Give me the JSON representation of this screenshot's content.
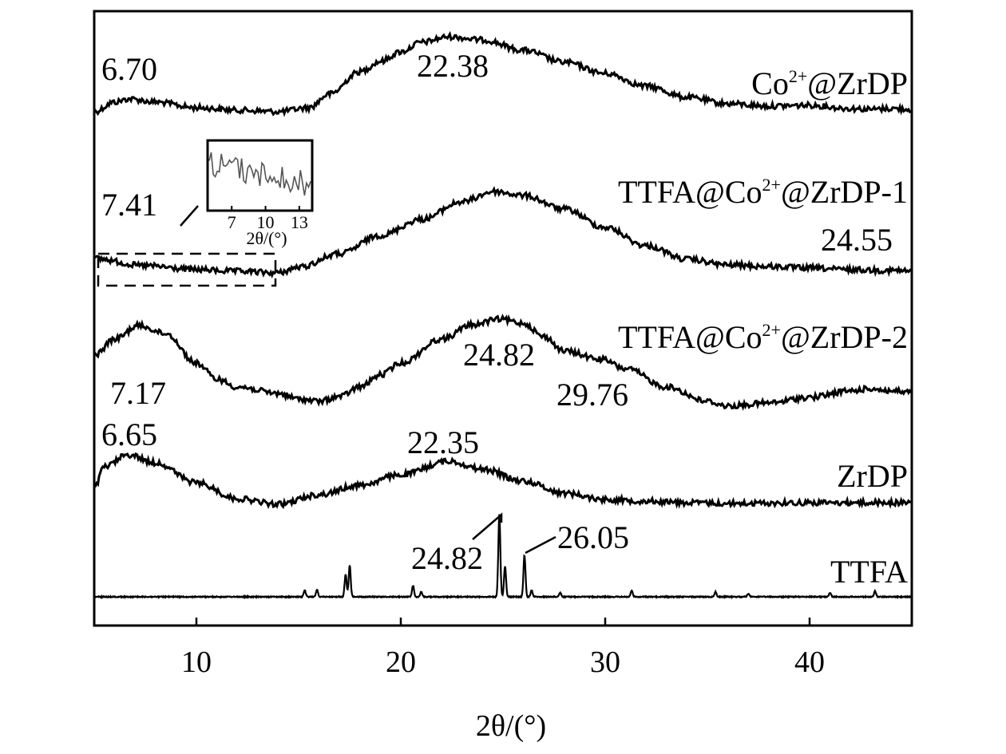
{
  "chart_data": {
    "type": "line",
    "xlabel": "2θ/(°)",
    "ylabel": "",
    "xlim": [
      5,
      45
    ],
    "x_ticks": [
      10,
      20,
      30,
      40
    ],
    "grid": false,
    "series": [
      {
        "name": "Co²⁺@ZrDP",
        "label_parts": [
          "Co",
          "2+",
          "@ZrDP"
        ],
        "baseline": 140,
        "points": [
          [
            5,
            140
          ],
          [
            6,
            128
          ],
          [
            6.7,
            124
          ],
          [
            8,
            128
          ],
          [
            10,
            135
          ],
          [
            12,
            138
          ],
          [
            14,
            140
          ],
          [
            15.5,
            135
          ],
          [
            16.5,
            118
          ],
          [
            18,
            90
          ],
          [
            19,
            77
          ],
          [
            20,
            65
          ],
          [
            21,
            53
          ],
          [
            22.38,
            46
          ],
          [
            24,
            50
          ],
          [
            26,
            63
          ],
          [
            28,
            78
          ],
          [
            30,
            92
          ],
          [
            32,
            108
          ],
          [
            34,
            122
          ],
          [
            36,
            130
          ],
          [
            38,
            133
          ],
          [
            40,
            132
          ],
          [
            42,
            136
          ],
          [
            43,
            137
          ],
          [
            44,
            136
          ],
          [
            45,
            137
          ]
        ],
        "peaks": [
          {
            "x": 6.7,
            "label": "6.70"
          },
          {
            "x": 22.38,
            "label": "22.38"
          }
        ]
      },
      {
        "name": "TTFA@Co²⁺@ZrDP-1",
        "label_parts": [
          "TTFA@Co",
          "2+",
          "@ZrDP-1"
        ],
        "baseline": 342,
        "points": [
          [
            5,
            324
          ],
          [
            7.4,
            333
          ],
          [
            10,
            338
          ],
          [
            12,
            340
          ],
          [
            14,
            342
          ],
          [
            15,
            335
          ],
          [
            17,
            318
          ],
          [
            19,
            295
          ],
          [
            21,
            275
          ],
          [
            23,
            253
          ],
          [
            24.55,
            240
          ],
          [
            26,
            245
          ],
          [
            28,
            262
          ],
          [
            30,
            285
          ],
          [
            32,
            308
          ],
          [
            34,
            325
          ],
          [
            36,
            332
          ],
          [
            38,
            334
          ],
          [
            40,
            336
          ],
          [
            42,
            338
          ],
          [
            44,
            339
          ],
          [
            45,
            340
          ]
        ],
        "peaks": [
          {
            "x": 7.41,
            "label": "7.41"
          },
          {
            "x": 24.55,
            "label": "24.55"
          }
        ],
        "inset": {
          "x_ticks": [
            7,
            10,
            13
          ],
          "xlabel": "2θ/(°)",
          "x_range": [
            5,
            14
          ]
        }
      },
      {
        "name": "TTFA@Co²⁺@ZrDP-2",
        "label_parts": [
          "TTFA@Co",
          "2+",
          "@ZrDP-2"
        ],
        "baseline": 500,
        "points": [
          [
            5,
            445
          ],
          [
            6,
            425
          ],
          [
            7.17,
            408
          ],
          [
            8.5,
            418
          ],
          [
            10,
            455
          ],
          [
            11,
            475
          ],
          [
            12,
            485
          ],
          [
            14,
            493
          ],
          [
            15,
            500
          ],
          [
            16,
            503
          ],
          [
            17,
            497
          ],
          [
            18,
            485
          ],
          [
            19,
            470
          ],
          [
            20,
            455
          ],
          [
            22,
            425
          ],
          [
            23.5,
            407
          ],
          [
            24.82,
            400
          ],
          [
            26,
            405
          ],
          [
            27,
            422
          ],
          [
            28,
            440
          ],
          [
            29.76,
            450
          ],
          [
            31,
            462
          ],
          [
            33,
            485
          ],
          [
            35,
            503
          ],
          [
            36,
            509
          ],
          [
            38,
            505
          ],
          [
            40,
            498
          ],
          [
            42,
            490
          ],
          [
            43,
            487
          ],
          [
            44,
            490
          ],
          [
            45,
            492
          ]
        ],
        "peaks": [
          {
            "x": 7.17,
            "label": "7.17"
          },
          {
            "x": 24.82,
            "label": "24.82"
          },
          {
            "x": 29.76,
            "label": "29.76"
          }
        ]
      },
      {
        "name": "ZrDP",
        "label_parts": [
          "ZrDP"
        ],
        "baseline": 630,
        "points": [
          [
            5,
            612
          ],
          [
            5.5,
            585
          ],
          [
            6.65,
            570
          ],
          [
            8,
            580
          ],
          [
            10,
            605
          ],
          [
            12,
            625
          ],
          [
            14,
            632
          ],
          [
            16,
            620
          ],
          [
            18,
            608
          ],
          [
            20,
            595
          ],
          [
            22.35,
            578
          ],
          [
            24,
            588
          ],
          [
            26,
            603
          ],
          [
            28,
            618
          ],
          [
            30,
            626
          ],
          [
            32,
            628
          ],
          [
            34,
            630
          ],
          [
            36,
            631
          ],
          [
            40,
            630
          ],
          [
            45,
            630
          ]
        ],
        "peaks": [
          {
            "x": 6.65,
            "label": "6.65"
          },
          {
            "x": 22.35,
            "label": "22.35"
          }
        ]
      },
      {
        "name": "TTFA",
        "label_parts": [
          "TTFA"
        ],
        "baseline": 748,
        "points": [
          [
            5,
            748
          ],
          [
            45,
            748
          ]
        ],
        "sticks": [
          [
            15.3,
            8
          ],
          [
            15.9,
            9
          ],
          [
            17.3,
            28
          ],
          [
            17.5,
            40
          ],
          [
            20.6,
            14
          ],
          [
            21.0,
            6
          ],
          [
            24.82,
            104
          ],
          [
            25.1,
            38
          ],
          [
            26.05,
            52
          ],
          [
            26.4,
            8
          ],
          [
            27.8,
            5
          ],
          [
            31.3,
            8
          ],
          [
            35.4,
            6
          ],
          [
            37,
            4
          ],
          [
            41,
            5
          ],
          [
            43.2,
            7
          ]
        ],
        "peaks": [
          {
            "x": 24.82,
            "label": "24.82"
          },
          {
            "x": 26.05,
            "label": "26.05"
          }
        ]
      }
    ]
  }
}
